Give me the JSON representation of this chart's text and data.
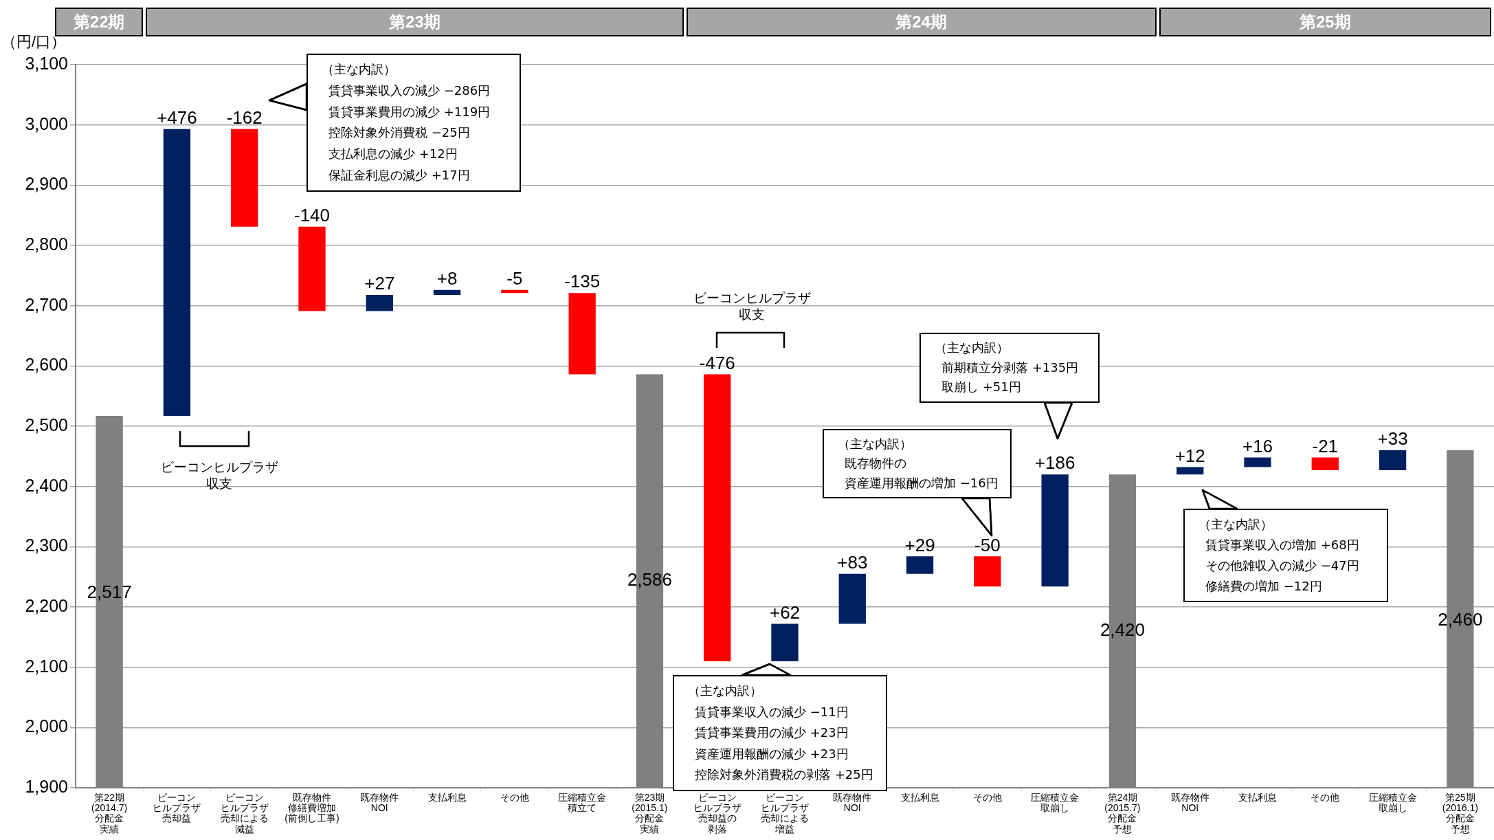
{
  "chart_data": {
    "type": "bar",
    "ylabel": "（円/口）",
    "categories": [
      "第22期(2014.7)分配金実績",
      "ビーコンヒルプラザ売却益",
      "ビーコンヒルプラザ売却による減益",
      "既存物件修繕費増加(前倒し工事)",
      "既存物件NOI",
      "支払利息",
      "その他",
      "圧縮積立金積立て",
      "第23期(2015.1)分配金実績",
      "ビーコンヒルプラザ売却益の剥落",
      "ビーコンヒルプラザ売却による増益",
      "既存物件NOI",
      "支払利息",
      "その他",
      "圧縮積立金取崩し",
      "第24期(2015.7)分配金予想",
      "既存物件NOI",
      "支払利息",
      "その他",
      "圧縮積立金取崩し",
      "第25期(2016.1)分配金予想"
    ],
    "values": [
      2517,
      476,
      -162,
      -140,
      27,
      8,
      -5,
      -135,
      2586,
      -476,
      62,
      83,
      29,
      -50,
      186,
      2420,
      12,
      16,
      -21,
      33,
      2460
    ],
    "base": [
      null,
      2517,
      2993,
      2831,
      2691,
      2718,
      2726,
      2721,
      null,
      2586,
      2110,
      2172,
      2255,
      2284,
      2234,
      null,
      2420,
      2432,
      2448,
      2427,
      null
    ],
    "colors": [
      "#808080",
      "#002060",
      "#ff0000",
      "#ff0000",
      "#002060",
      "#002060",
      "#ff0000",
      "#ff0000",
      "#808080",
      "#ff0000",
      "#002060",
      "#002060",
      "#002060",
      "#ff0000",
      "#002060",
      "#808080",
      "#002060",
      "#002060",
      "#ff0000",
      "#002060",
      "#808080"
    ],
    "value_labels": [
      "2,517",
      "+476",
      "-162",
      "-140",
      "+27",
      "+8",
      "-5",
      "-135",
      "2,586",
      "-476",
      "+62",
      "+83",
      "+29",
      "-50",
      "+186",
      "2,420",
      "+12",
      "+16",
      "-21",
      "+33",
      "2,460"
    ],
    "ylim": [
      1900,
      3100
    ],
    "yticks": [
      {
        "value": 1900,
        "label": "1,900"
      },
      {
        "value": 2000,
        "label": "2,000"
      },
      {
        "value": 2100,
        "label": "2,100"
      },
      {
        "value": 2200,
        "label": "2,200"
      },
      {
        "value": 2300,
        "label": "2,300"
      },
      {
        "value": 2400,
        "label": "2,400"
      },
      {
        "value": 2500,
        "label": "2,500"
      },
      {
        "value": 2600,
        "label": "2,600"
      },
      {
        "value": 2700,
        "label": "2,700"
      },
      {
        "value": 2800,
        "label": "2,800"
      },
      {
        "value": 2900,
        "label": "2,900"
      },
      {
        "value": 3000,
        "label": "3,000"
      },
      {
        "value": 3100,
        "label": "3,100"
      }
    ],
    "grid": "y",
    "legend": false,
    "annotations": [
      "第22期",
      "第23期",
      "第24期",
      "第25期",
      "ビーコンヒルプラザ収支",
      "ビーコンヒルプラザ収支",
      "（主な内訳）",
      "賃貸事業収入の減少 −286円",
      "賃貸事業費用の減少 +119円",
      "控除対象外消費税 −25円",
      "支払利息の減少 +12円",
      "保証金利息の減少 +17円",
      "（主な内訳）",
      "賃貸事業収入の減少 −11円",
      "賃貸事業費用の減少 +23円",
      "資産運用報酬の減少 +23円",
      "控除対象外消費税の剥落 +25円",
      "（主な内訳）",
      "前期積立分剥落 +135円",
      "取崩し +51円",
      "（主な内訳）",
      "既存物件の",
      "資産運用報酬の増加 −16円",
      "（主な内訳）",
      "賃貸事業収入の増加 +68円",
      "その他雑収入の減少 −47円",
      "修繕費の増加 −12円"
    ]
  }
}
